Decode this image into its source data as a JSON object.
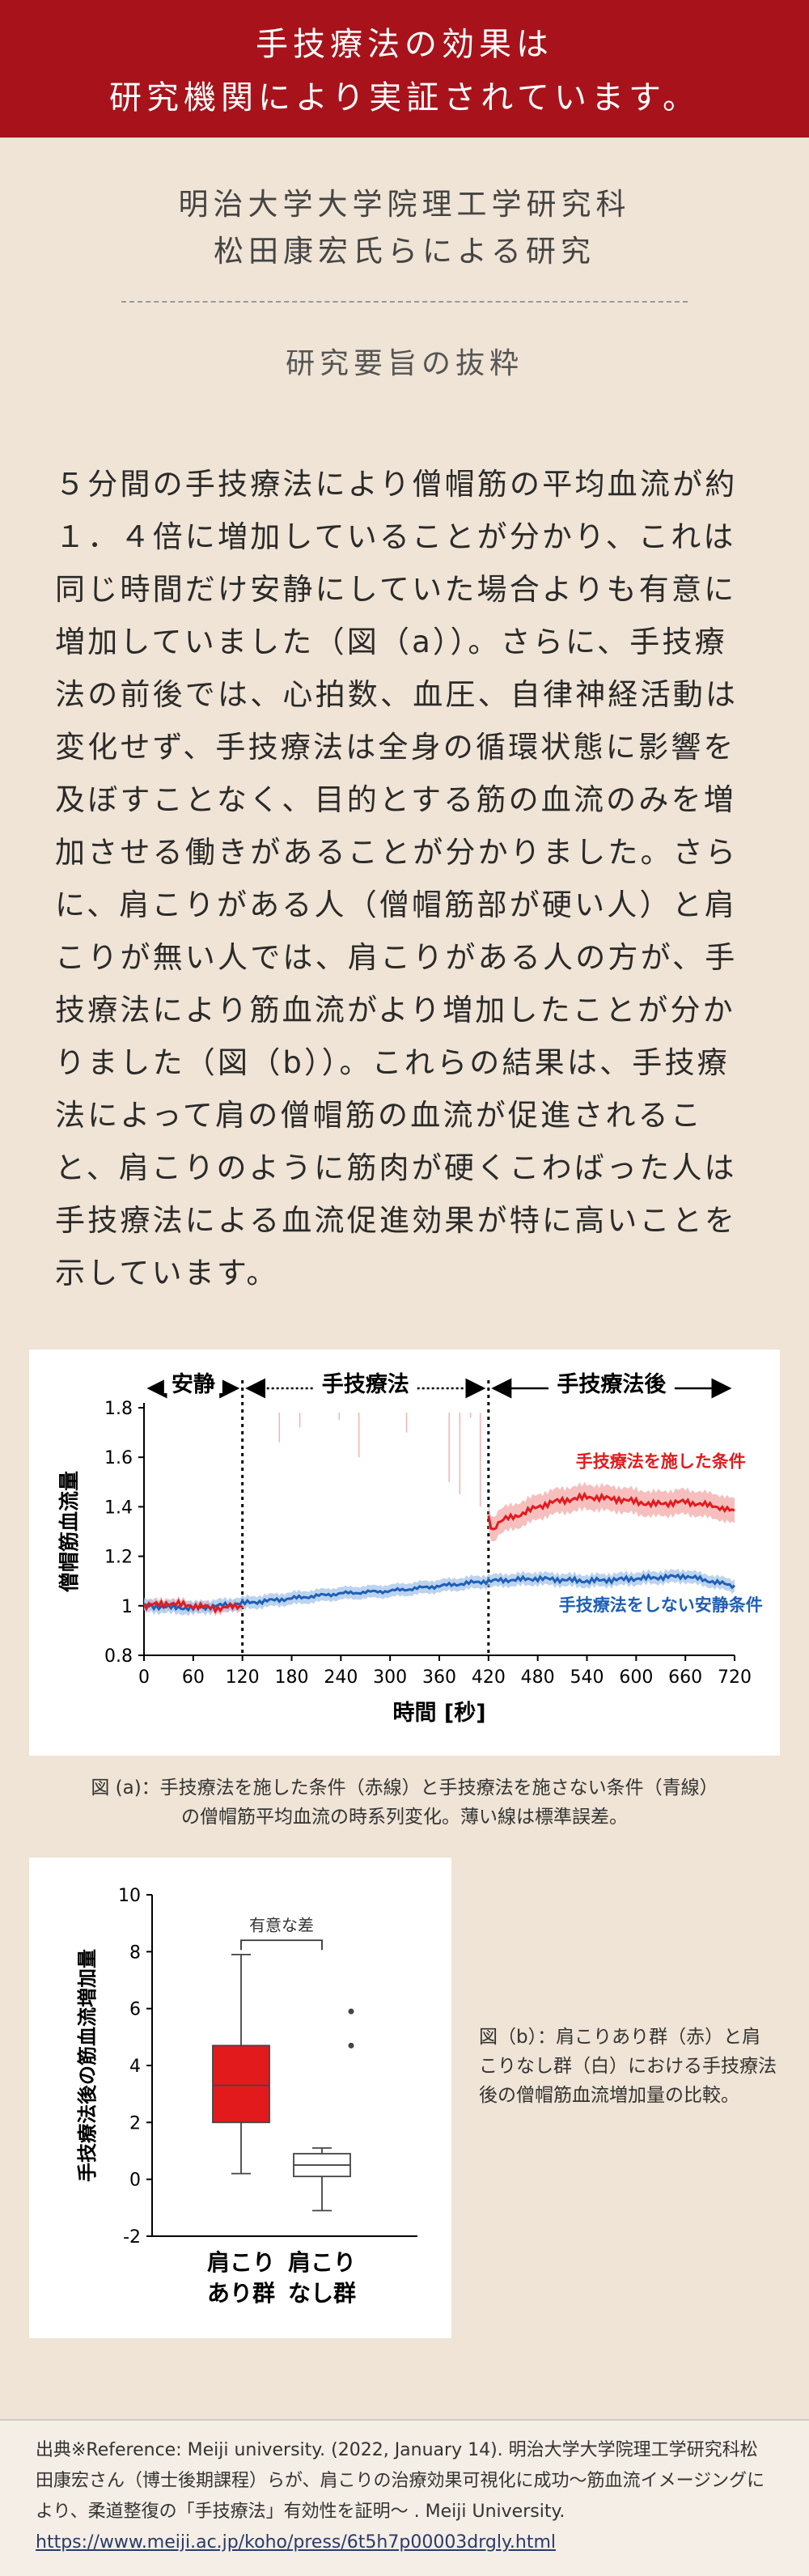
{
  "banner": {
    "line1": "手技療法の効果は",
    "line2": "研究機関により実証されています。"
  },
  "org": {
    "line1": "明治大学大学院理工学研究科",
    "line2": "松田康宏氏らによる研究"
  },
  "subheading": "研究要旨の抜粋",
  "body_text": "５分間の手技療法により僧帽筋の平均血流が約１．４倍に増加していることが分かり、これは同じ時間だけ安静にしていた場合よりも有意に増加していました（図（a））。さらに、手技療法の前後では、心拍数、血圧、自律神経活動は変化せず、手技療法は全身の循環状態に影響を及ぼすことなく、目的とする筋の血流のみを増加させる働きがあることが分かりました。さらに、肩こりがある人（僧帽筋部が硬い人）と肩こりが無い人では、肩こりがある人の方が、手技療法により筋血流がより増加したことが分かりました（図（b））。これらの結果は、手技療法によって肩の僧帽筋の血流が促進されること、肩こりのように筋肉が硬くこわばった人は手技療法による血流促進効果が特に高いことを示しています。",
  "chart_data": [
    {
      "type": "line",
      "phases": [
        "安静",
        "手技療法",
        "手技療法後"
      ],
      "phase_bounds": [
        0,
        120,
        420,
        720
      ],
      "xlabel": "時間 [秒]",
      "ylabel": "僧帽筋血流量",
      "xticks": [
        0,
        60,
        120,
        180,
        240,
        300,
        360,
        420,
        480,
        540,
        600,
        660,
        720
      ],
      "yticks": [
        0.8,
        1,
        1.2,
        1.4,
        1.6,
        1.8
      ],
      "ytick_labels": [
        "0.8",
        "1",
        "1.2",
        "1.4",
        "1.6",
        "1.8"
      ],
      "xlim": [
        0,
        720
      ],
      "ylim": [
        0.8,
        1.8
      ],
      "series": [
        {
          "name": "手技療法を施した条件",
          "color": "#e31a1c",
          "x": [
            0,
            30,
            60,
            90,
            120,
            420,
            425,
            430,
            440,
            460,
            480,
            500,
            540,
            580,
            620,
            660,
            700,
            720
          ],
          "y": [
            1.0,
            1.01,
            1.0,
            0.99,
            1.0,
            1.36,
            1.3,
            1.33,
            1.35,
            1.37,
            1.4,
            1.42,
            1.44,
            1.43,
            1.41,
            1.42,
            1.4,
            1.38
          ]
        },
        {
          "name": "手技療法をしない安静条件",
          "color": "#1f5fb4",
          "x": [
            0,
            60,
            120,
            180,
            240,
            300,
            360,
            420,
            480,
            540,
            600,
            660,
            720
          ],
          "y": [
            1.0,
            0.99,
            1.01,
            1.03,
            1.05,
            1.06,
            1.08,
            1.1,
            1.11,
            1.1,
            1.11,
            1.12,
            1.08
          ]
        }
      ]
    },
    {
      "type": "box",
      "ylabel": "手技療法後の筋血流増加量",
      "yticks": [
        -2,
        0,
        2,
        4,
        6,
        8,
        10
      ],
      "ytick_labels": [
        "-2",
        "0",
        "2",
        "4",
        "6",
        "8",
        "10"
      ],
      "ylim": [
        -2,
        10
      ],
      "significance_label": "有意な差",
      "groups": [
        {
          "line1": "肩こり",
          "line2": "あり群",
          "min": 0.2,
          "q1": 2.0,
          "median": 3.3,
          "q3": 4.7,
          "max": 7.9,
          "outliers": [],
          "color": "#e31a1c"
        },
        {
          "line1": "肩こり",
          "line2": "なし群",
          "min": -1.1,
          "q1": 0.1,
          "median": 0.5,
          "q3": 0.9,
          "max": 1.1,
          "outliers": [
            5.9,
            4.7
          ],
          "color": "#ffffff"
        }
      ]
    }
  ],
  "caption_a": {
    "line1": "図 (a)：手技療法を施した条件（赤線）と手技療法を施さない条件（青線）",
    "line2": "の僧帽筋平均血流の時系列変化。薄い線は標準誤差。"
  },
  "caption_b": "図（b）：肩こりあり群（赤）と肩こりなし群（白）における手技療法後の僧帽筋血流増加量の比較。",
  "footer": {
    "text": "出典※Reference: Meiji university. (2022, January 14). 明治大学大学院理工学研究科松田康宏さん（博士後期課程）らが、肩こりの治療効果可視化に成功〜筋血流イメージングにより、柔道整復の「手技療法」有効性を証明〜 . Meiji University. ",
    "link": "https://www.meiji.ac.jp/koho/press/6t5h7p00003drgly.html"
  }
}
